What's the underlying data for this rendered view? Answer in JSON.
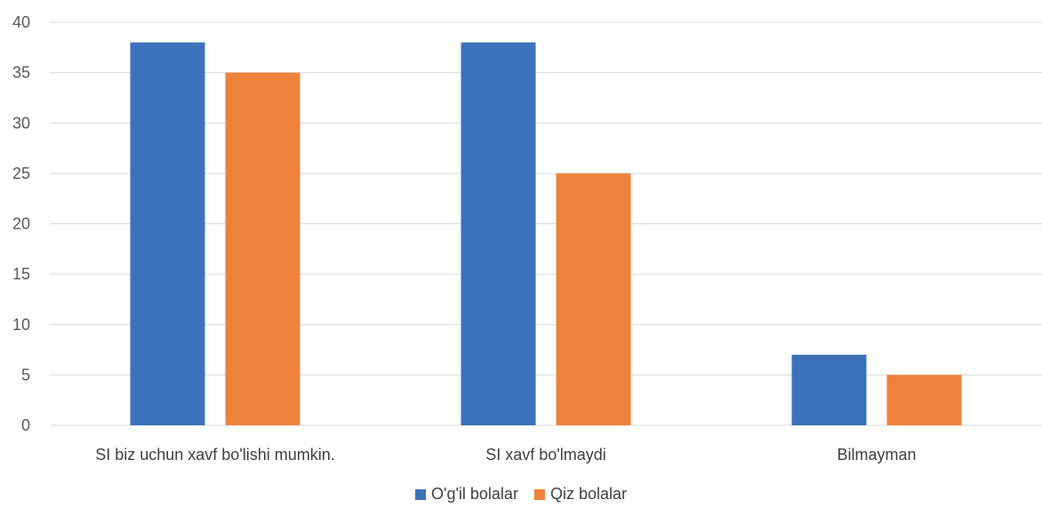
{
  "chart_data": {
    "type": "bar",
    "title": "",
    "xlabel": "",
    "ylabel": "",
    "categories": [
      "SI biz uchun xavf bo'lishi mumkin.",
      "SI xavf bo'lmaydi",
      "Bilmayman"
    ],
    "series": [
      {
        "name": "O'g'il bolalar",
        "values": [
          38,
          38,
          7
        ],
        "color": "#3C72BA"
      },
      {
        "name": "Qiz bolalar",
        "values": [
          35,
          25,
          5
        ],
        "color": "#EF823C"
      }
    ],
    "ylim": [
      0,
      40
    ],
    "yticks": [
      0,
      5,
      10,
      15,
      20,
      25,
      30,
      35,
      40
    ],
    "grid": true,
    "legend_position": "bottom"
  }
}
